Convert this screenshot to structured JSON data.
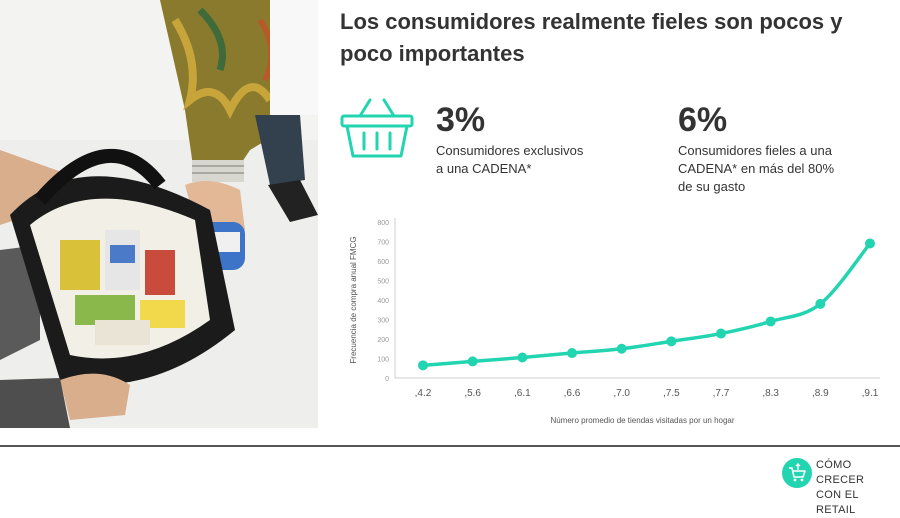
{
  "title": "Los consumidores realmente fieles son pocos y poco importantes",
  "stats": [
    {
      "value": "3%",
      "description": "Consumidores  exclusivos\na una CADENA*"
    },
    {
      "value": "6%",
      "description": "Consumidores fieles a una\nCADENA*  en más del 80%\nde su gasto"
    }
  ],
  "brand": {
    "line1": "CÓMO CRECER",
    "line2": "CON EL RETAIL"
  },
  "colors": {
    "accent": "#23d4b0",
    "text": "#333333",
    "axis": "#cccccc"
  },
  "icons": [
    "basket-icon",
    "cart-logo-icon"
  ],
  "chart_data": {
    "type": "line",
    "categories": [
      ",4.2",
      ",5.6",
      ",6.1",
      ",6.6",
      ",7.0",
      ",7.5",
      ",7.7",
      ",8.3",
      ",8.9",
      ",9.1"
    ],
    "values": [
      65,
      85,
      105,
      128,
      150,
      188,
      228,
      290,
      380,
      690
    ],
    "xlabel": "Número promedio de tiendas visitadas por un hogar",
    "ylabel": "Frecuencia de compra anual FMCG",
    "ylim": [
      0,
      800
    ],
    "yticks": [
      "0",
      "100",
      "200",
      "300",
      "400",
      "500",
      "600",
      "700",
      "800"
    ],
    "grid": false,
    "color": "#23d4b0"
  }
}
